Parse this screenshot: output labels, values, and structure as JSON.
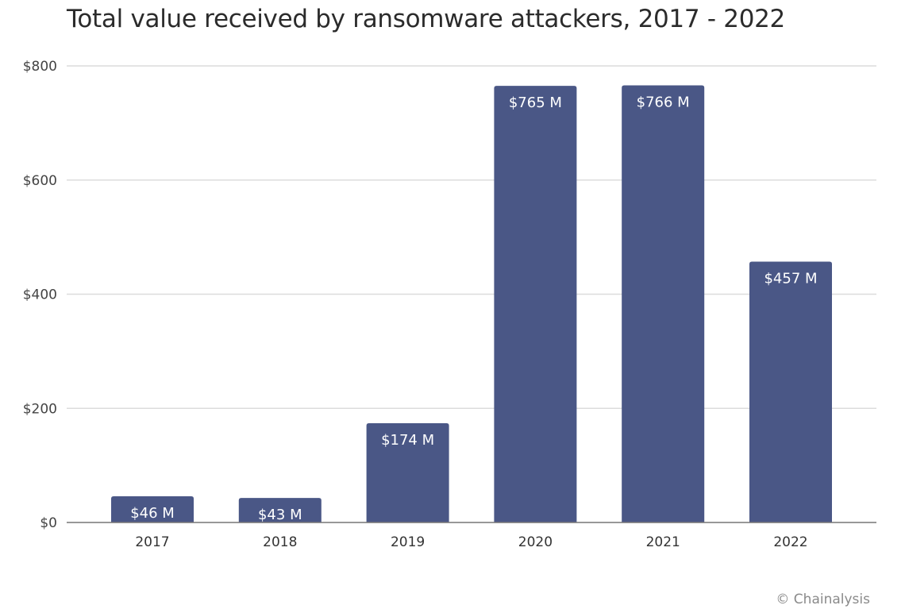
{
  "chart_data": {
    "type": "bar",
    "title": "Total value received by ransomware attackers, 2017 - 2022",
    "xlabel": "",
    "ylabel": "",
    "categories": [
      "2017",
      "2018",
      "2019",
      "2020",
      "2021",
      "2022"
    ],
    "values": [
      46,
      43,
      174,
      765,
      766,
      457
    ],
    "data_labels": [
      "$46 M",
      "$43 M",
      "$174 M",
      "$765 M",
      "$766 M",
      "$457 M"
    ],
    "ylim": [
      0,
      800
    ],
    "yticks": [
      0,
      200,
      400,
      600,
      800
    ],
    "ytick_labels": [
      "$0",
      "$200",
      "$400",
      "$600",
      "$800"
    ],
    "grid": true,
    "bar_color": "#4a5786"
  },
  "credit": "© Chainalysis"
}
